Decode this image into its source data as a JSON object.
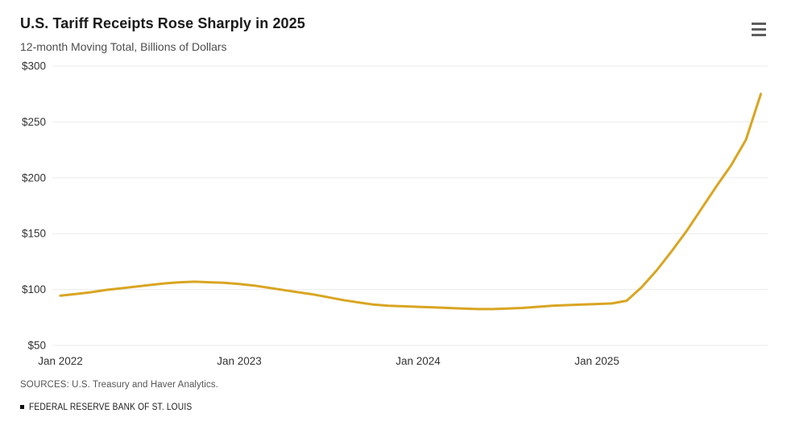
{
  "header": {
    "title": "U.S. Tariff Receipts Rose Sharply in 2025",
    "subtitle": "12-month Moving Total, Billions of Dollars"
  },
  "menu": {
    "icon": "hamburger-menu-icon"
  },
  "footer": {
    "sources": "SOURCES: U.S. Treasury and Haver Analytics.",
    "branding": "FEDERAL RESERVE BANK OF ST. LOUIS",
    "branding_bullet": "square-bullet-icon"
  },
  "colors": {
    "line": "#D9A521",
    "grid": "#EBEBEB",
    "title_text": "#1A1A1A",
    "subtitle_text": "#4D4D4D",
    "tick_text": "#333333",
    "source_text": "#555555",
    "menu_icon": "#5D5D5D",
    "background": "#FFFFFF"
  },
  "chart_data": {
    "type": "line",
    "title": "U.S. Tariff Receipts Rose Sharply in 2025",
    "subtitle": "12-month Moving Total, Billions of Dollars",
    "ylabel": "Billions of Dollars (12-month moving total)",
    "xlabel": "",
    "ylim": [
      50,
      300
    ],
    "grid": "horizontal",
    "legend": "none",
    "y_ticks": [
      50,
      100,
      150,
      200,
      250,
      300
    ],
    "y_tick_labels": [
      "$50",
      "$100",
      "$150",
      "$200",
      "$250",
      "$300"
    ],
    "x_ticks": [
      {
        "index": 0,
        "label": "Jan 2022"
      },
      {
        "index": 12,
        "label": "Jan 2023"
      },
      {
        "index": 24,
        "label": "Jan 2024"
      },
      {
        "index": 36,
        "label": "Jan 2025"
      }
    ],
    "x": [
      "2022-01",
      "2022-02",
      "2022-03",
      "2022-04",
      "2022-05",
      "2022-06",
      "2022-07",
      "2022-08",
      "2022-09",
      "2022-10",
      "2022-11",
      "2022-12",
      "2023-01",
      "2023-02",
      "2023-03",
      "2023-04",
      "2023-05",
      "2023-06",
      "2023-07",
      "2023-08",
      "2023-09",
      "2023-10",
      "2023-11",
      "2023-12",
      "2024-01",
      "2024-02",
      "2024-03",
      "2024-04",
      "2024-05",
      "2024-06",
      "2024-07",
      "2024-08",
      "2024-09",
      "2024-10",
      "2024-11",
      "2024-12",
      "2025-01",
      "2025-02",
      "2025-03",
      "2025-04",
      "2025-05",
      "2025-06",
      "2025-07",
      "2025-08",
      "2025-09",
      "2025-10",
      "2025-11",
      "2025-12"
    ],
    "series": [
      {
        "name": "U.S. tariff receipts, 12-month moving total ($B)",
        "color": "#D9A521",
        "values": [
          94.5,
          96,
          97.5,
          99.5,
          101,
          102.5,
          104,
          105.5,
          106.5,
          107,
          106.5,
          106,
          105,
          103.5,
          101.5,
          99.5,
          97.5,
          95.5,
          93,
          90.5,
          88.5,
          86.5,
          85.5,
          85,
          84.5,
          84,
          83.5,
          83,
          82.5,
          82.5,
          83,
          83.5,
          84.5,
          85.5,
          86,
          86.5,
          87,
          87.5,
          90,
          102,
          117,
          134,
          152,
          172,
          192,
          211,
          234,
          275
        ]
      }
    ]
  }
}
